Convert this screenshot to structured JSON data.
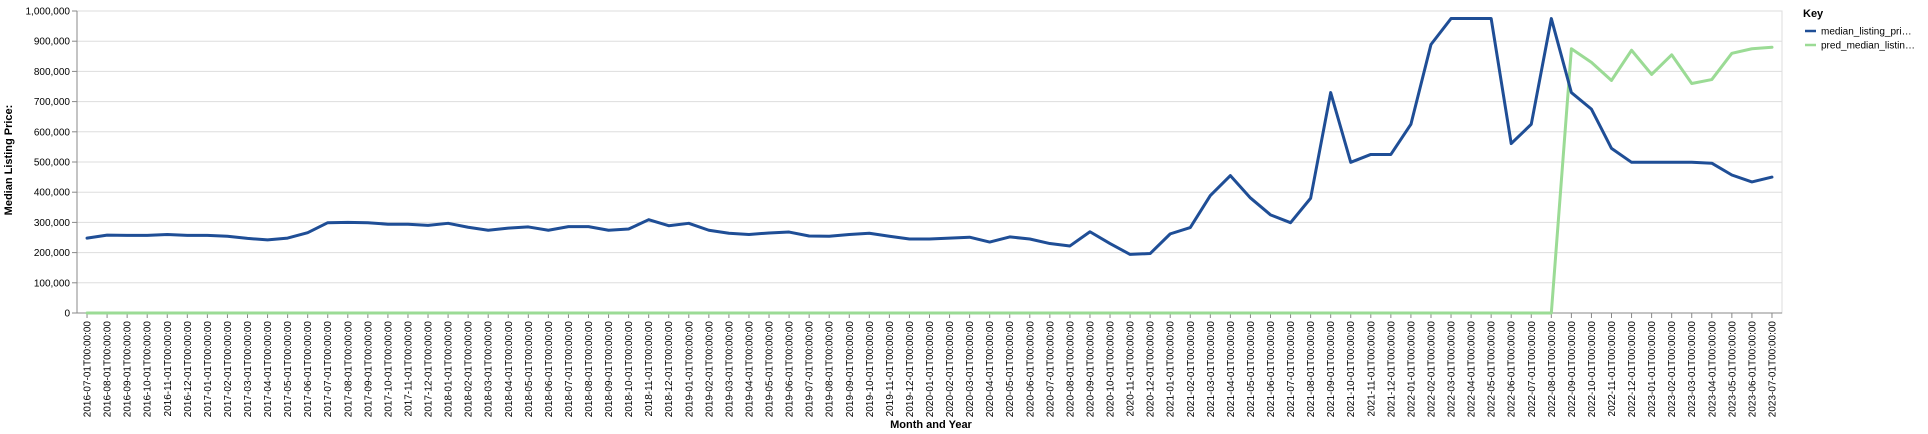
{
  "chart_data": {
    "type": "line",
    "title": "",
    "xlabel": "Month and Year",
    "ylabel": "Median Listing Price:",
    "ylim": [
      0,
      1000000
    ],
    "y_ticks": [
      0,
      100000,
      200000,
      300000,
      400000,
      500000,
      600000,
      700000,
      800000,
      900000,
      1000000
    ],
    "y_tick_labels": [
      "0",
      "100,000",
      "200,000",
      "300,000",
      "400,000",
      "500,000",
      "600,000",
      "700,000",
      "800,000",
      "900,000",
      "1,000,000"
    ],
    "grid": true,
    "legend": {
      "title": "Key",
      "position": "right"
    },
    "x": [
      "2016-07-01T00:00:00",
      "2016-08-01T00:00:00",
      "2016-09-01T00:00:00",
      "2016-10-01T00:00:00",
      "2016-11-01T00:00:00",
      "2016-12-01T00:00:00",
      "2017-01-01T00:00:00",
      "2017-02-01T00:00:00",
      "2017-03-01T00:00:00",
      "2017-04-01T00:00:00",
      "2017-05-01T00:00:00",
      "2017-06-01T00:00:00",
      "2017-07-01T00:00:00",
      "2017-08-01T00:00:00",
      "2017-09-01T00:00:00",
      "2017-10-01T00:00:00",
      "2017-11-01T00:00:00",
      "2017-12-01T00:00:00",
      "2018-01-01T00:00:00",
      "2018-02-01T00:00:00",
      "2018-03-01T00:00:00",
      "2018-04-01T00:00:00",
      "2018-05-01T00:00:00",
      "2018-06-01T00:00:00",
      "2018-07-01T00:00:00",
      "2018-08-01T00:00:00",
      "2018-09-01T00:00:00",
      "2018-10-01T00:00:00",
      "2018-11-01T00:00:00",
      "2018-12-01T00:00:00",
      "2019-01-01T00:00:00",
      "2019-02-01T00:00:00",
      "2019-03-01T00:00:00",
      "2019-04-01T00:00:00",
      "2019-05-01T00:00:00",
      "2019-06-01T00:00:00",
      "2019-07-01T00:00:00",
      "2019-08-01T00:00:00",
      "2019-09-01T00:00:00",
      "2019-10-01T00:00:00",
      "2019-11-01T00:00:00",
      "2019-12-01T00:00:00",
      "2020-01-01T00:00:00",
      "2020-02-01T00:00:00",
      "2020-03-01T00:00:00",
      "2020-04-01T00:00:00",
      "2020-05-01T00:00:00",
      "2020-06-01T00:00:00",
      "2020-07-01T00:00:00",
      "2020-08-01T00:00:00",
      "2020-09-01T00:00:00",
      "2020-10-01T00:00:00",
      "2020-11-01T00:00:00",
      "2020-12-01T00:00:00",
      "2021-01-01T00:00:00",
      "2021-02-01T00:00:00",
      "2021-03-01T00:00:00",
      "2021-04-01T00:00:00",
      "2021-05-01T00:00:00",
      "2021-06-01T00:00:00",
      "2021-07-01T00:00:00",
      "2021-08-01T00:00:00",
      "2021-09-01T00:00:00",
      "2021-10-01T00:00:00",
      "2021-11-01T00:00:00",
      "2021-12-01T00:00:00",
      "2022-01-01T00:00:00",
      "2022-02-01T00:00:00",
      "2022-03-01T00:00:00",
      "2022-04-01T00:00:00",
      "2022-05-01T00:00:00",
      "2022-06-01T00:00:00",
      "2022-07-01T00:00:00",
      "2022-08-01T00:00:00",
      "2022-09-01T00:00:00",
      "2022-10-01T00:00:00",
      "2022-11-01T00:00:00",
      "2022-12-01T00:00:00",
      "2023-01-01T00:00:00",
      "2023-02-01T00:00:00",
      "2023-03-01T00:00:00",
      "2023-04-01T00:00:00",
      "2023-05-01T00:00:00",
      "2023-06-01T00:00:00",
      "2023-07-01T00:00:00"
    ],
    "series": [
      {
        "name": "median_listing_pri…",
        "color": "#1f4e96",
        "values": [
          248000,
          258000,
          257000,
          257000,
          260000,
          257000,
          257000,
          254000,
          247000,
          242000,
          248000,
          266000,
          299000,
          300000,
          299000,
          294000,
          294000,
          290000,
          297000,
          284000,
          274000,
          281000,
          285000,
          274000,
          286000,
          286000,
          274000,
          278000,
          309000,
          289000,
          297000,
          274000,
          264000,
          260000,
          265000,
          268000,
          255000,
          254000,
          260000,
          264000,
          254000,
          245000,
          245000,
          248000,
          251000,
          235000,
          252000,
          245000,
          230000,
          222000,
          269000,
          230000,
          194000,
          197000,
          262000,
          283000,
          389000,
          455000,
          381000,
          325000,
          299000,
          380000,
          730000,
          499000,
          525000,
          525000,
          625000,
          889000,
          975000,
          975000,
          975000,
          561000,
          625000,
          975000,
          730000,
          675000,
          545000,
          499000,
          499000,
          499000,
          499000,
          496000,
          457000,
          434000,
          450000
        ]
      },
      {
        "name": "pred_median_listin…",
        "color": "#9bdb95",
        "values": [
          0,
          0,
          0,
          0,
          0,
          0,
          0,
          0,
          0,
          0,
          0,
          0,
          0,
          0,
          0,
          0,
          0,
          0,
          0,
          0,
          0,
          0,
          0,
          0,
          0,
          0,
          0,
          0,
          0,
          0,
          0,
          0,
          0,
          0,
          0,
          0,
          0,
          0,
          0,
          0,
          0,
          0,
          0,
          0,
          0,
          0,
          0,
          0,
          0,
          0,
          0,
          0,
          0,
          0,
          0,
          0,
          0,
          0,
          0,
          0,
          0,
          0,
          0,
          0,
          0,
          0,
          0,
          0,
          0,
          0,
          0,
          0,
          0,
          0,
          875000,
          830000,
          770000,
          870000,
          790000,
          855000,
          760000,
          773000,
          860000,
          875000,
          880000
        ]
      }
    ]
  }
}
